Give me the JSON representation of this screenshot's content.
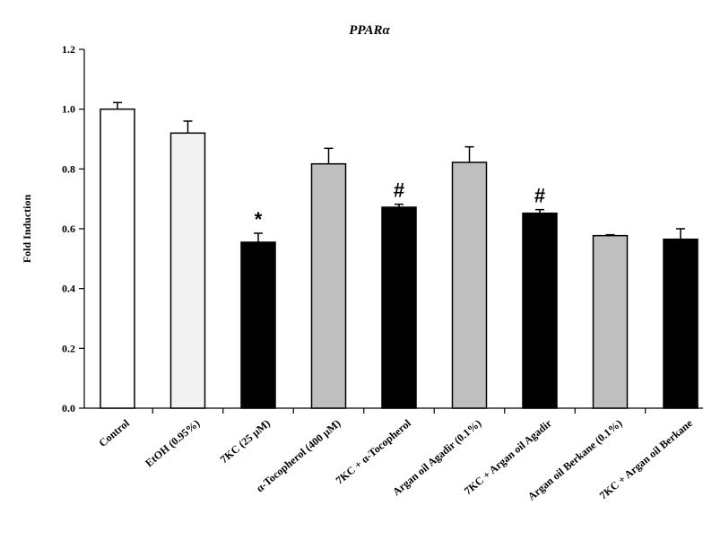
{
  "chart_data": {
    "type": "bar",
    "title": "PPARα",
    "xlabel": "",
    "ylabel": "Fold Induction",
    "ylim": [
      0,
      1.2
    ],
    "yticks": [
      "0.0",
      "0.2",
      "0.4",
      "0.6",
      "0.8",
      "1.0",
      "1.2"
    ],
    "grid": false,
    "legend": "none",
    "categories": [
      "Control",
      "EtOH (0.95%)",
      "7KC (25 µM)",
      "α-Tocopherol (400 µM)",
      "7KC + α-Tocopherol",
      "Argan oil  Agadir (0.1%)",
      "7KC + Argan oil  Agadir",
      "Argan oil  Berkane (0.1%)",
      "7KC + Argan oil  Berkane"
    ],
    "values": [
      1.0,
      0.92,
      0.555,
      0.817,
      0.672,
      0.822,
      0.652,
      0.577,
      0.565
    ],
    "errors": [
      0.022,
      0.04,
      0.03,
      0.052,
      0.01,
      0.052,
      0.012,
      0.003,
      0.035
    ],
    "colors": [
      "#ffffff",
      "#f2f2f2",
      "#000000",
      "#bfbfbf",
      "#000000",
      "#bfbfbf",
      "#000000",
      "#bfbfbf",
      "#000000"
    ],
    "annotations": [
      "",
      "",
      "*",
      "",
      "#",
      "",
      "#",
      "",
      ""
    ]
  }
}
